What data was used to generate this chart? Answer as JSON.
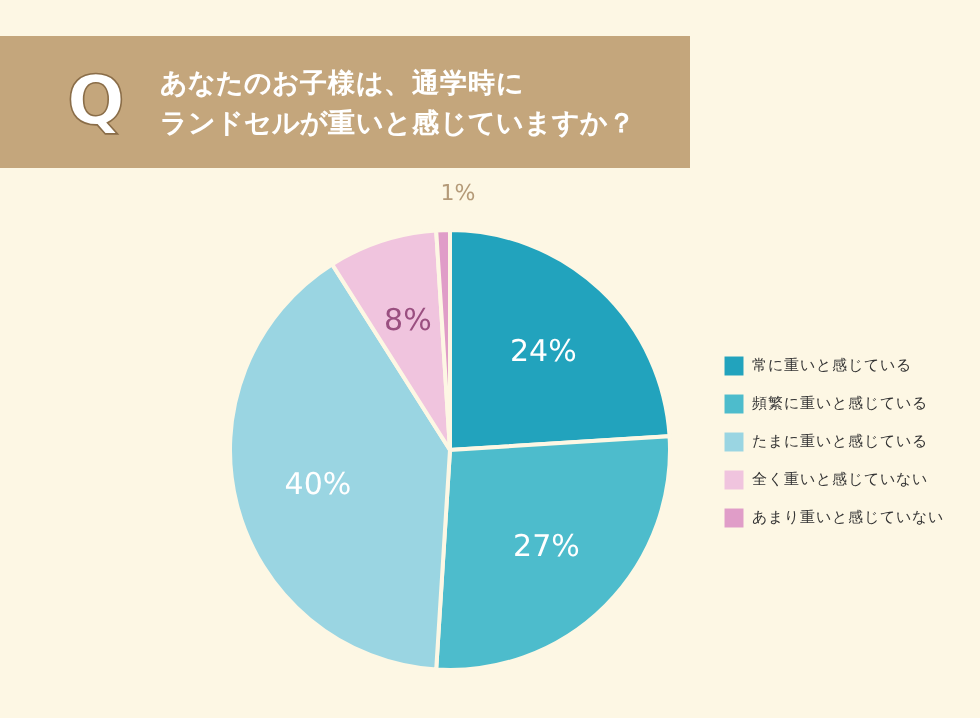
{
  "chart_data": {
    "type": "pie",
    "title": "あなたのお子様は、通学時にランドセルが重いと感じていますか？",
    "annotations": [
      "Q"
    ],
    "categories": [
      "常に重いと感じている",
      "頻繁に重いと感じている",
      "たまに重いと感じている",
      "全く重いと感じていない",
      "あまり重いと感じていない"
    ],
    "values": [
      24,
      27,
      40,
      8,
      1
    ],
    "colors": [
      "#22a3bd",
      "#4dbccc",
      "#9ad5e2",
      "#f0c4de",
      "#e09dc8"
    ],
    "value_labels": [
      "24%",
      "27%",
      "40%",
      "8%",
      "1%"
    ],
    "legend": "right"
  }
}
